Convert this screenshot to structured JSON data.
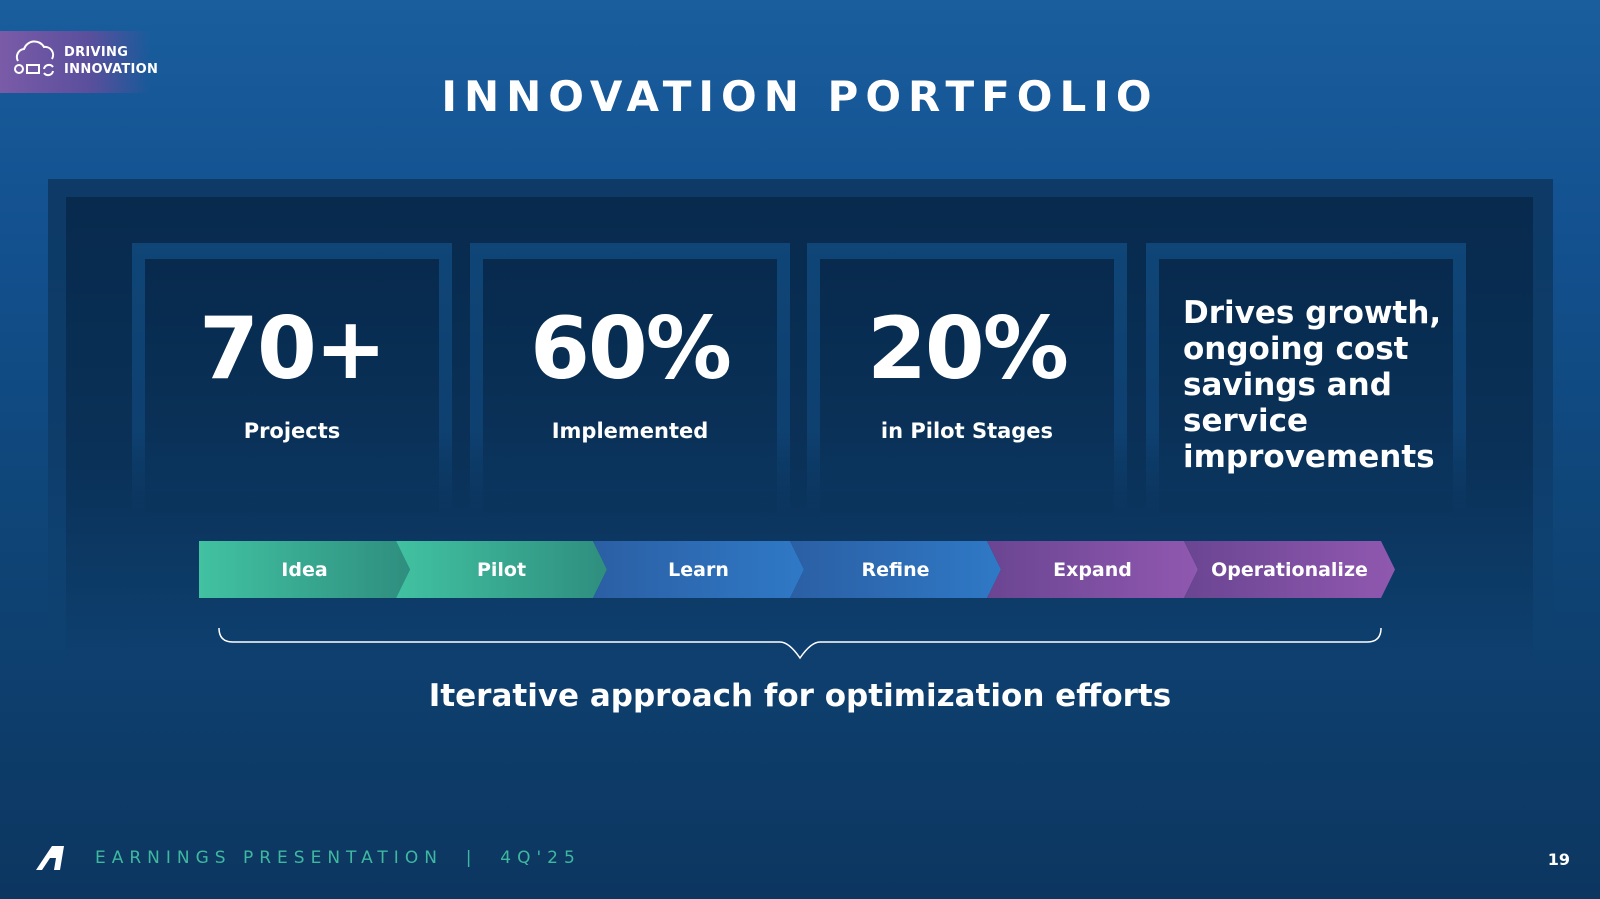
{
  "header": {
    "badge": [
      "DRIVING",
      "INNOVATION"
    ],
    "title": "INNOVATION PORTFOLIO"
  },
  "stats": [
    {
      "value": "70+",
      "label": "Projects"
    },
    {
      "value": "60%",
      "label": "Implemented"
    },
    {
      "value": "20%",
      "label": "in Pilot Stages"
    }
  ],
  "summary": "Drives growth, ongoing cost savings and service improvements",
  "steps": [
    "Idea",
    "Pilot",
    "Learn",
    "Refine",
    "Expand",
    "Operationalize"
  ],
  "caption": "Iterative approach for optimization efforts",
  "footer": {
    "text": "EARNINGS PRESENTATION  |  4Q'25",
    "page": "19"
  }
}
